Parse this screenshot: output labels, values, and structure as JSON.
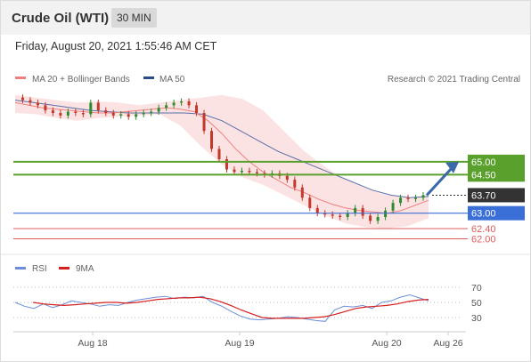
{
  "header": {
    "title": "Crude Oil (WTI)",
    "timeframe": "30 MIN",
    "timestamp": "Friday, August 20, 2021 1:55:46 AM CET"
  },
  "legend": {
    "ma20_label": "MA 20 + Bollinger Bands",
    "ma50_label": "MA 50",
    "credit": "Research © 2021 Trading Central",
    "rsi_label": "RSI",
    "rsi_ma_label": "9MA"
  },
  "colors": {
    "ma20": "#f08080",
    "bollinger_fill": "#fbd9d9",
    "ma50": "#5a6fa8",
    "up_candle": "#2e8b2e",
    "down_candle": "#c0392b",
    "resistance": "#5aa02c",
    "support": "#3a6fd8",
    "minor_support": "#e05c5c",
    "current": "#333333",
    "arrow": "#3a6aa8",
    "rsi": "#6a8fd8",
    "rsi_ma": "#d62020"
  },
  "chart_data": [
    {
      "type": "candlestick",
      "title": "Crude Oil (WTI)",
      "interval": "30 MIN",
      "x": [
        "Aug 18",
        "Aug 19",
        "Aug 20",
        "Aug 26"
      ],
      "ylim": [
        61.8,
        66.0
      ],
      "levels": [
        {
          "value": 65.0,
          "label": "65.00",
          "kind": "resistance"
        },
        {
          "value": 64.5,
          "label": "64.50",
          "kind": "resistance"
        },
        {
          "value": 63.7,
          "label": "63.70",
          "kind": "current"
        },
        {
          "value": 63.0,
          "label": "63.00",
          "kind": "support"
        },
        {
          "value": 62.4,
          "label": "62.40",
          "kind": "minor"
        },
        {
          "value": 62.0,
          "label": "62.00",
          "kind": "minor"
        }
      ],
      "price_series": [
        67.5,
        67.4,
        67.3,
        67.2,
        67.0,
        66.9,
        66.8,
        66.95,
        66.9,
        66.85,
        67.3,
        67.0,
        66.9,
        66.8,
        66.85,
        66.75,
        66.85,
        66.9,
        66.95,
        67.1,
        67.2,
        67.3,
        67.35,
        67.2,
        66.9,
        66.2,
        65.5,
        65.1,
        64.7,
        64.6,
        64.65,
        64.6,
        64.55,
        64.5,
        64.55,
        64.45,
        64.3,
        64.0,
        63.6,
        63.2,
        63.0,
        62.95,
        62.9,
        62.85,
        63.0,
        63.2,
        62.9,
        62.7,
        62.85,
        63.1,
        63.4,
        63.6,
        63.55,
        63.6,
        63.7
      ],
      "ma20": [
        67.3,
        67.2,
        67.1,
        67.05,
        67.0,
        66.95,
        66.9,
        66.9,
        66.95,
        67.0,
        67.05,
        67.1,
        67.05,
        66.95,
        66.6,
        66.1,
        65.5,
        65.0,
        64.6,
        64.3,
        64.0,
        63.8,
        63.55,
        63.35,
        63.2,
        63.1,
        63.05,
        63.0,
        63.1,
        63.3,
        63.5
      ],
      "bollinger_upper": [
        67.6,
        67.5,
        67.4,
        67.3,
        67.35,
        67.3,
        67.2,
        67.3,
        67.4,
        67.5,
        67.6,
        67.45,
        67.0,
        66.2,
        65.4,
        64.8,
        64.3,
        63.95,
        63.7,
        63.6,
        63.7
      ],
      "bollinger_lower": [
        66.9,
        66.85,
        66.7,
        66.6,
        66.7,
        66.75,
        66.8,
        66.85,
        66.4,
        65.6,
        64.9,
        64.4,
        64.1,
        63.7,
        63.3,
        62.9,
        62.6,
        62.45,
        62.4,
        62.5,
        62.8
      ],
      "ma50": [
        67.4,
        67.3,
        67.2,
        67.1,
        67.0,
        66.95,
        66.9,
        66.9,
        66.9,
        66.9,
        66.85,
        66.6,
        66.2,
        65.8,
        65.4,
        65.1,
        64.8,
        64.5,
        64.2,
        63.9,
        63.7,
        63.6,
        63.65
      ]
    },
    {
      "type": "line",
      "title": "RSI",
      "ylim": [
        15,
        75
      ],
      "ticks": [
        "70",
        "50",
        "30"
      ],
      "tick_values": [
        70,
        50,
        30
      ],
      "series": [
        {
          "name": "RSI",
          "values": [
            50,
            45,
            42,
            48,
            43,
            47,
            52,
            50,
            48,
            45,
            47,
            46,
            50,
            53,
            55,
            57,
            58,
            55,
            57,
            56,
            58,
            50,
            45,
            38,
            32,
            28,
            27,
            28,
            29,
            31,
            30,
            28,
            26,
            25,
            40,
            45,
            44,
            46,
            42,
            50,
            52,
            57,
            60,
            56,
            52
          ]
        },
        {
          "name": "9MA",
          "values": [
            50,
            48,
            47,
            46,
            47,
            48,
            49,
            50,
            50,
            49,
            50,
            52,
            54,
            55,
            56,
            56,
            57,
            55,
            51,
            46,
            40,
            35,
            30,
            29,
            29,
            29,
            29,
            30,
            31,
            34,
            38,
            42,
            44,
            45,
            46,
            48,
            51,
            53,
            54
          ]
        }
      ]
    }
  ]
}
